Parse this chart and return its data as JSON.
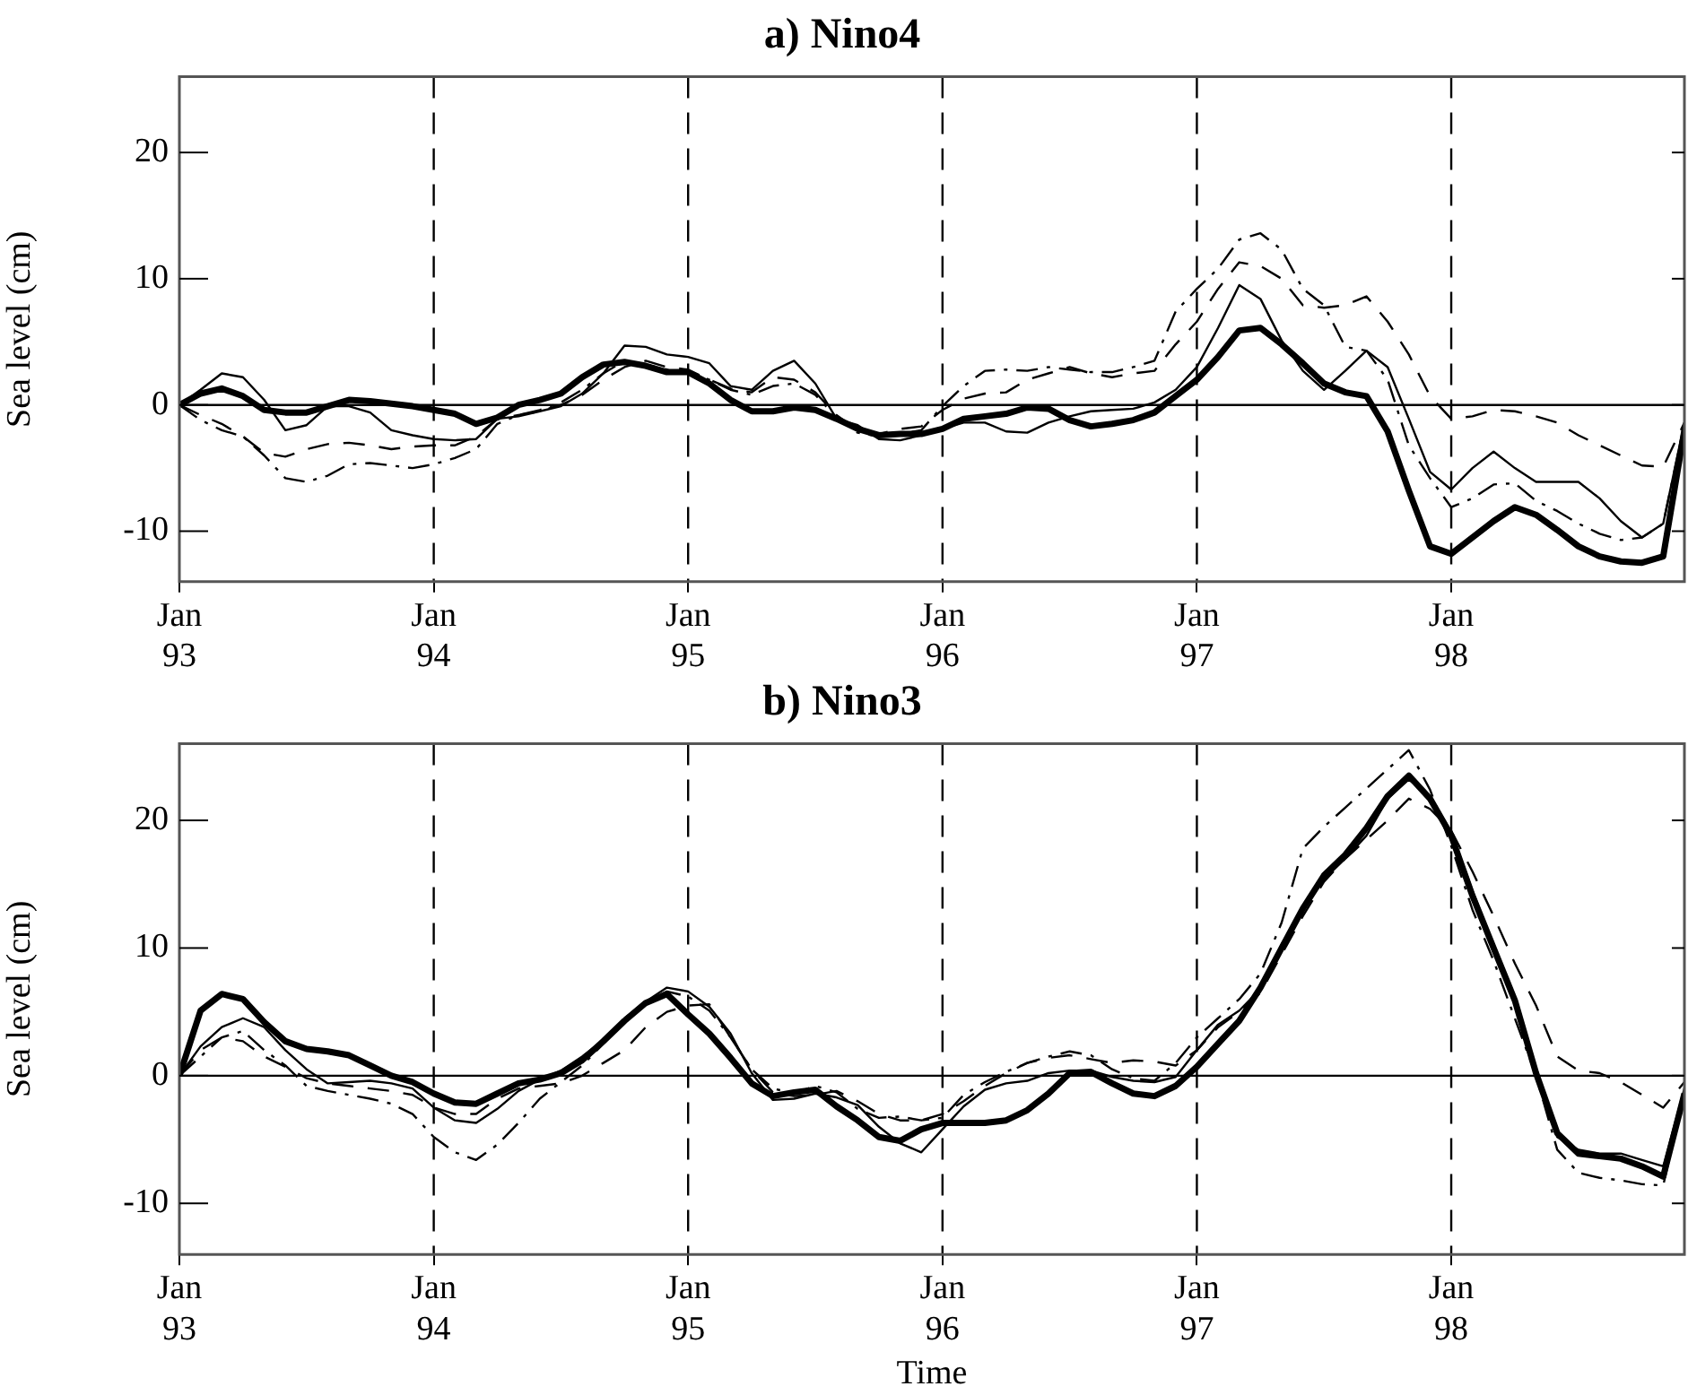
{
  "chart_data": [
    {
      "type": "line",
      "title": "a) Nino4",
      "ylabel": "Sea level (cm)",
      "x": [
        "1993-01",
        "1993-02",
        "1993-03",
        "1993-04",
        "1993-05",
        "1993-06",
        "1993-07",
        "1993-08",
        "1993-09",
        "1993-10",
        "1993-11",
        "1993-12",
        "1994-01",
        "1994-02",
        "1994-03",
        "1994-04",
        "1994-05",
        "1994-06",
        "1994-07",
        "1994-08",
        "1994-09",
        "1994-10",
        "1994-11",
        "1994-12",
        "1995-01",
        "1995-02",
        "1995-03",
        "1995-04",
        "1995-05",
        "1995-06",
        "1995-07",
        "1995-08",
        "1995-09",
        "1995-10",
        "1995-11",
        "1995-12",
        "1996-01",
        "1996-02",
        "1996-03",
        "1996-04",
        "1996-05",
        "1996-06",
        "1996-07",
        "1996-08",
        "1996-09",
        "1996-10",
        "1996-11",
        "1996-12",
        "1997-01",
        "1997-02",
        "1997-03",
        "1997-04",
        "1997-05",
        "1997-06",
        "1997-07",
        "1997-08",
        "1997-09",
        "1997-10",
        "1997-11",
        "1997-12",
        "1998-01",
        "1998-02",
        "1998-03",
        "1998-04",
        "1998-05",
        "1998-06",
        "1998-07",
        "1998-08",
        "1998-09",
        "1998-10",
        "1998-11",
        "1998-12"
      ],
      "series": [
        {
          "color": "#000000",
          "line_style": "solid",
          "values": [
            0,
            0.9,
            1.3,
            0.7,
            -0.4,
            -0.6,
            -0.6,
            -0.1,
            0.4,
            0.3,
            0.1,
            -0.1,
            -0.4,
            -0.7,
            -1.5,
            -1,
            0,
            0.4,
            0.9,
            2.2,
            3.2,
            3.4,
            3.1,
            2.6,
            2.6,
            1.7,
            0.4,
            -0.5,
            -0.5,
            -0.2,
            -0.4,
            -1.1,
            -1.9,
            -2.4,
            -2.3,
            -2.3,
            -1.9,
            -1.1,
            -0.9,
            -0.7,
            -0.2,
            -0.3,
            -1.2,
            -1.7,
            -1.5,
            -1.2,
            -0.6,
            0.7,
            2,
            3.8,
            5.9,
            6.1,
            4.8,
            3.3,
            1.7,
            1,
            0.7,
            -2.1,
            -6.8,
            -11.2,
            -11.8,
            -10.5,
            -9.2,
            -8.1,
            -8.7,
            -9.9,
            -11.2,
            -12,
            -12.4,
            -12.5,
            -12,
            -2
          ]
        },
        {
          "color": "#000000",
          "line_style": "solid",
          "values": [
            0,
            1.2,
            2.5,
            2.2,
            0.4,
            -2,
            -1.6,
            -0.1,
            -0.1,
            -0.6,
            -2,
            -2.4,
            -2.7,
            -2.8,
            -2.7,
            -1.1,
            -0.9,
            -0.5,
            -0.1,
            0.9,
            2.5,
            4.7,
            4.6,
            4,
            3.8,
            3.3,
            1.5,
            1.2,
            2.7,
            3.5,
            1.7,
            -1.1,
            -1.6,
            -2.7,
            -2.8,
            -2.4,
            -1.9,
            -1.4,
            -1.4,
            -2.1,
            -2.2,
            -1.4,
            -0.9,
            -0.5,
            -0.4,
            -0.3,
            0.2,
            1.2,
            3,
            6.1,
            9.5,
            8.4,
            5.1,
            2.7,
            1.2,
            2.7,
            4.3,
            3,
            -1.1,
            -5.3,
            -6.7,
            -5,
            -3.7,
            -5,
            -6.1,
            -6.1,
            -6.1,
            -7.4,
            -9.2,
            -10.5,
            -9.4,
            -1.4
          ]
        },
        {
          "color": "#000000",
          "line_style": "dashed",
          "values": [
            0,
            -0.8,
            -1.5,
            -2.5,
            -3.8,
            -4.1,
            -3.5,
            -3.1,
            -3,
            -3.2,
            -3.5,
            -3.3,
            -3.2,
            -3.2,
            -2.5,
            -1.1,
            -0.8,
            -0.5,
            0,
            0.8,
            2,
            3,
            3.5,
            3,
            2.8,
            2,
            1.3,
            1,
            2.2,
            2,
            1,
            -0.8,
            -2,
            -2.3,
            -1.9,
            -1.7,
            -0.4,
            0.5,
            0.9,
            1,
            2,
            2.5,
            3,
            2.5,
            2.2,
            2.5,
            2.7,
            4.8,
            6.6,
            9.2,
            11.3,
            11,
            10,
            7.9,
            7.7,
            7.9,
            8.6,
            6.6,
            4,
            0.7,
            -1.1,
            -0.9,
            -0.4,
            -0.5,
            -0.9,
            -1.4,
            -2.4,
            -3.2,
            -4,
            -4.8,
            -4.9,
            -1.4
          ]
        },
        {
          "color": "#000000",
          "line_style": "dashdot",
          "values": [
            0,
            -1.2,
            -2,
            -2.5,
            -4,
            -5.8,
            -6.1,
            -5.6,
            -4.7,
            -4.6,
            -4.8,
            -5,
            -4.7,
            -4.2,
            -3.5,
            -1.5,
            -0.8,
            -0.4,
            0.2,
            1.2,
            2.5,
            3.5,
            3.2,
            2.8,
            2.6,
            2,
            1.2,
            0.8,
            1.5,
            1.7,
            0.8,
            -1,
            -2.2,
            -2.5,
            -2.3,
            -2,
            -0.1,
            1.5,
            2.7,
            2.8,
            2.7,
            3,
            2.8,
            2.6,
            2.6,
            3,
            3.5,
            7.4,
            9.2,
            10.8,
            13.1,
            13.6,
            12.3,
            9.2,
            7.9,
            4.6,
            4.3,
            2,
            -3.2,
            -5.8,
            -8.1,
            -7.4,
            -6.3,
            -6.2,
            -7.6,
            -8.4,
            -9.4,
            -10.2,
            -10.7,
            -10.5,
            -9.4,
            -1.5
          ]
        }
      ],
      "xlim": [
        "1993-01",
        "1998-12"
      ],
      "xticks": [
        {
          "value": "1993-01",
          "label": "Jan 93"
        },
        {
          "value": "1994-01",
          "label": "Jan 94"
        },
        {
          "value": "1995-01",
          "label": "Jan 95"
        },
        {
          "value": "1996-01",
          "label": "Jan 96"
        },
        {
          "value": "1997-01",
          "label": "Jan 97"
        },
        {
          "value": "1998-01",
          "label": "Jan 98"
        }
      ],
      "ylim": [
        -14,
        26
      ],
      "yticks": [
        -10,
        0,
        10,
        20
      ],
      "ref_lines": [
        {
          "axis": "y",
          "value": 0,
          "line_style": "solid"
        },
        {
          "axis": "x",
          "value": "1994-01",
          "line_style": "dashed"
        },
        {
          "axis": "x",
          "value": "1995-01",
          "line_style": "dashed"
        },
        {
          "axis": "x",
          "value": "1996-01",
          "line_style": "dashed"
        },
        {
          "axis": "x",
          "value": "1997-01",
          "line_style": "dashed"
        },
        {
          "axis": "x",
          "value": "1998-01",
          "line_style": "dashed"
        }
      ]
    },
    {
      "type": "line",
      "title": "b) Nino3",
      "xlabel": "Time",
      "ylabel": "Sea level (cm)",
      "x": [
        "1993-01",
        "1993-02",
        "1993-03",
        "1993-04",
        "1993-05",
        "1993-06",
        "1993-07",
        "1993-08",
        "1993-09",
        "1993-10",
        "1993-11",
        "1993-12",
        "1994-01",
        "1994-02",
        "1994-03",
        "1994-04",
        "1994-05",
        "1994-06",
        "1994-07",
        "1994-08",
        "1994-09",
        "1994-10",
        "1994-11",
        "1994-12",
        "1995-01",
        "1995-02",
        "1995-03",
        "1995-04",
        "1995-05",
        "1995-06",
        "1995-07",
        "1995-08",
        "1995-09",
        "1995-10",
        "1995-11",
        "1995-12",
        "1996-01",
        "1996-02",
        "1996-03",
        "1996-04",
        "1996-05",
        "1996-06",
        "1996-07",
        "1996-08",
        "1996-09",
        "1996-10",
        "1996-11",
        "1996-12",
        "1997-01",
        "1997-02",
        "1997-03",
        "1997-04",
        "1997-05",
        "1997-06",
        "1997-07",
        "1997-08",
        "1997-09",
        "1997-10",
        "1997-11",
        "1997-12",
        "1998-01",
        "1998-02",
        "1998-03",
        "1998-04",
        "1998-05",
        "1998-06",
        "1998-07",
        "1998-08",
        "1998-09",
        "1998-10",
        "1998-11",
        "1998-12"
      ],
      "series": [
        {
          "color": "#000000",
          "line_style": "solid",
          "values": [
            0,
            5.1,
            6.4,
            6,
            4.2,
            2.7,
            2.1,
            1.9,
            1.6,
            0.8,
            0,
            -0.5,
            -1.4,
            -2.1,
            -2.2,
            -1.4,
            -0.6,
            -0.3,
            0.2,
            1.2,
            2.7,
            4.3,
            5.7,
            6.4,
            4.8,
            3.3,
            1.4,
            -0.6,
            -1.6,
            -1.3,
            -1.1,
            -2.4,
            -3.5,
            -4.8,
            -5.1,
            -4.2,
            -3.7,
            -3.7,
            -3.7,
            -3.5,
            -2.7,
            -1.4,
            0.2,
            0.3,
            -0.6,
            -1.4,
            -1.6,
            -0.8,
            0.7,
            2.5,
            4.3,
            6.9,
            10,
            13.1,
            15.7,
            17.3,
            19.4,
            21.9,
            23.5,
            21.7,
            18.8,
            14.1,
            10,
            5.9,
            0.2,
            -4.5,
            -6.1,
            -6.3,
            -6.5,
            -7.1,
            -7.9,
            -1.4
          ]
        },
        {
          "color": "#000000",
          "line_style": "solid",
          "values": [
            0,
            2.3,
            3.8,
            4.5,
            3.8,
            2,
            0.5,
            -0.6,
            -0.5,
            -0.4,
            -0.6,
            -1,
            -2.5,
            -3.5,
            -3.7,
            -2.6,
            -1.2,
            -0.3,
            0.4,
            1.5,
            2.8,
            4.3,
            5.8,
            6.9,
            6.6,
            5.4,
            3.3,
            0.2,
            -1.9,
            -1.8,
            -1.4,
            -1.7,
            -2.3,
            -4,
            -5.3,
            -6,
            -4.2,
            -2.4,
            -1.1,
            -0.6,
            -0.4,
            0.2,
            0.4,
            0.4,
            -0.1,
            -0.4,
            -0.5,
            -0.1,
            2,
            4,
            5.1,
            6.8,
            10.3,
            13.1,
            15.4,
            17,
            18.8,
            21.7,
            23.2,
            21.9,
            19.1,
            14.5,
            10.2,
            6,
            0.5,
            -4.8,
            -5.8,
            -6.1,
            -6.1,
            -6.6,
            -7.1,
            -1
          ]
        },
        {
          "color": "#000000",
          "line_style": "dashed",
          "values": [
            0,
            2,
            3,
            2.7,
            1.5,
            0.7,
            -0.2,
            -0.6,
            -0.8,
            -1,
            -1.2,
            -1.5,
            -2.5,
            -3,
            -3,
            -1.8,
            -1,
            -0.8,
            -0.6,
            0,
            1,
            2,
            3.8,
            5,
            5.5,
            5.6,
            3,
            0.5,
            -1.3,
            -1.6,
            -1.5,
            -1.2,
            -2,
            -3,
            -3.5,
            -3.5,
            -3,
            -2,
            -0.8,
            0.2,
            1,
            1.4,
            1.6,
            1.3,
            1,
            1.2,
            1.1,
            0.8,
            2,
            3.8,
            5,
            6.5,
            9.5,
            12.5,
            15.2,
            17,
            18.5,
            20,
            21.7,
            20.9,
            19.2,
            16,
            12.5,
            8.8,
            5.5,
            1.5,
            0.4,
            0.2,
            -0.5,
            -1.5,
            -2.5,
            -0.5
          ]
        },
        {
          "color": "#000000",
          "line_style": "dashdot",
          "values": [
            0,
            1.5,
            3,
            3.5,
            2,
            0.8,
            -0.8,
            -1.2,
            -1.5,
            -1.8,
            -2.2,
            -3,
            -4.8,
            -6,
            -6.6,
            -5.4,
            -3.7,
            -1.8,
            -0.5,
            0.8,
            2.5,
            4.5,
            5.8,
            6.6,
            6.2,
            5.1,
            3,
            0.5,
            -1,
            -1.4,
            -0.8,
            -1.3,
            -2.6,
            -3.3,
            -3.2,
            -3.5,
            -3.3,
            -1.5,
            -0.5,
            0.3,
            1,
            1.5,
            1.9,
            1.6,
            0.5,
            -0.2,
            -0.4,
            1,
            3,
            4.5,
            6,
            8,
            12,
            17.8,
            19.5,
            21,
            22.5,
            24,
            25.5,
            22.4,
            18,
            13,
            9,
            4.5,
            0,
            -5.8,
            -7.6,
            -8,
            -8.2,
            -8.5,
            -8.6,
            -1.2
          ]
        }
      ],
      "xlim": [
        "1993-01",
        "1998-12"
      ],
      "xticks": [
        {
          "value": "1993-01",
          "label": "Jan 93"
        },
        {
          "value": "1994-01",
          "label": "Jan 94"
        },
        {
          "value": "1995-01",
          "label": "Jan 95"
        },
        {
          "value": "1996-01",
          "label": "Jan 96"
        },
        {
          "value": "1997-01",
          "label": "Jan 97"
        },
        {
          "value": "1998-01",
          "label": "Jan 98"
        }
      ],
      "ylim": [
        -14,
        26
      ],
      "yticks": [
        -10,
        0,
        10,
        20
      ],
      "ref_lines": [
        {
          "axis": "y",
          "value": 0,
          "line_style": "solid"
        },
        {
          "axis": "x",
          "value": "1994-01",
          "line_style": "dashed"
        },
        {
          "axis": "x",
          "value": "1995-01",
          "line_style": "dashed"
        },
        {
          "axis": "x",
          "value": "1996-01",
          "line_style": "dashed"
        },
        {
          "axis": "x",
          "value": "1997-01",
          "line_style": "dashed"
        },
        {
          "axis": "x",
          "value": "1998-01",
          "line_style": "dashed"
        }
      ]
    }
  ]
}
